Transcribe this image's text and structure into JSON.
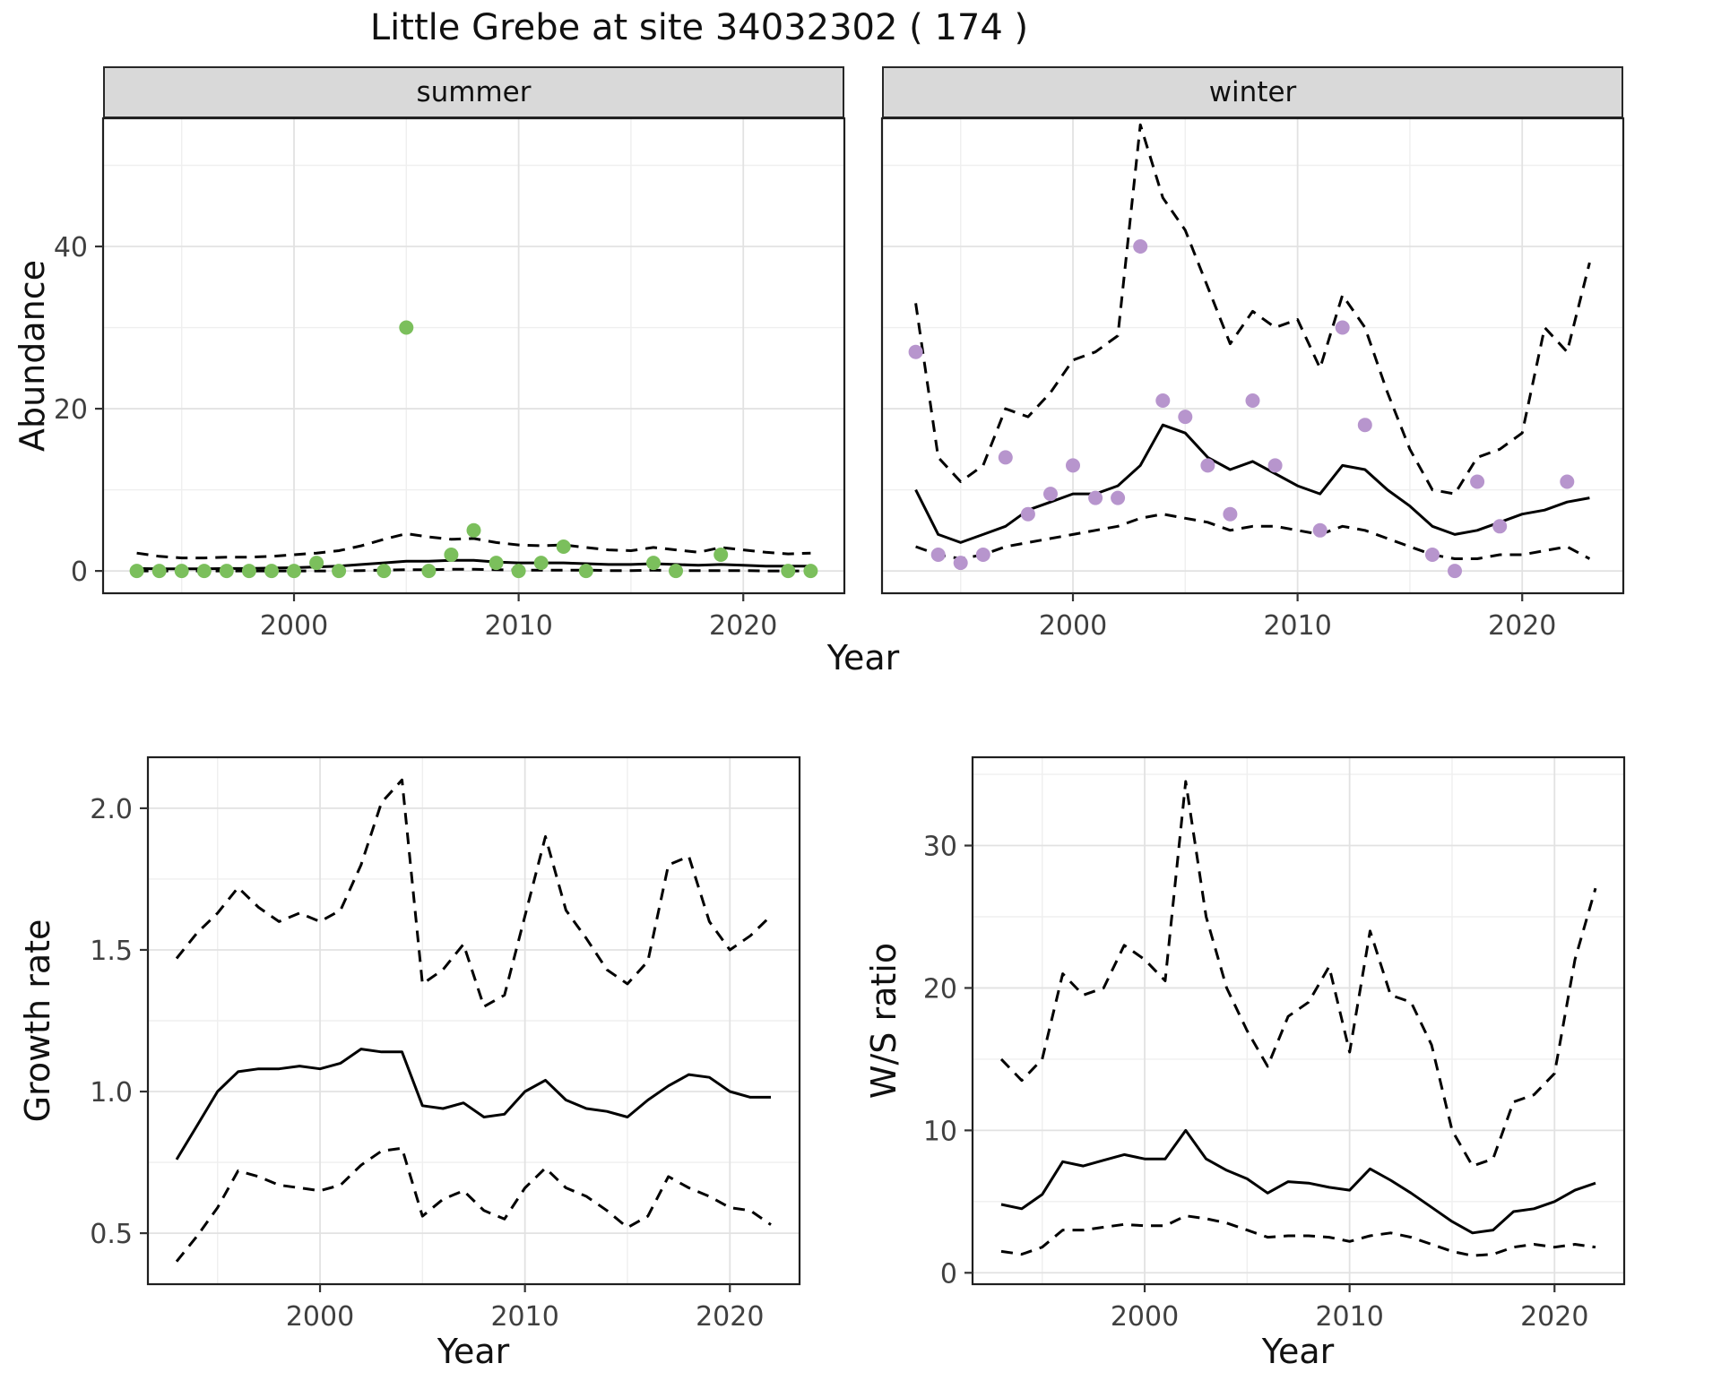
{
  "title": "Little Grebe at site 34032302 ( 174 )",
  "chart_data": [
    {
      "id": "abundance-summer",
      "type": "line",
      "facet_label": "summer",
      "xlabel": "Year",
      "ylabel": "Abundance",
      "xlim": [
        1991.5,
        2024.5
      ],
      "ylim": [
        -2.75,
        55.8
      ],
      "xticks": [
        2000,
        2010,
        2020
      ],
      "xtick_labels": [
        "2000",
        "2010",
        "2020"
      ],
      "xticks_minor": [
        1995,
        2005,
        2015
      ],
      "yticks": [
        0,
        20,
        40
      ],
      "ytick_labels": [
        "0",
        "20",
        "40"
      ],
      "yticks_minor": [
        10,
        30,
        50
      ],
      "grid": "on",
      "x": [
        1993,
        1994,
        1995,
        1996,
        1997,
        1998,
        1999,
        2000,
        2001,
        2002,
        2003,
        2004,
        2005,
        2006,
        2007,
        2008,
        2009,
        2010,
        2011,
        2012,
        2013,
        2014,
        2015,
        2016,
        2017,
        2018,
        2019,
        2020,
        2021,
        2022,
        2023
      ],
      "series": [
        {
          "name": "model-estimate",
          "style": "solid",
          "y": [
            0.3,
            0.25,
            0.25,
            0.25,
            0.3,
            0.3,
            0.35,
            0.4,
            0.5,
            0.6,
            0.8,
            1.0,
            1.2,
            1.2,
            1.3,
            1.3,
            1.1,
            1.0,
            1.0,
            1.0,
            0.9,
            0.8,
            0.8,
            0.9,
            0.8,
            0.7,
            0.8,
            0.7,
            0.6,
            0.6,
            0.6
          ]
        },
        {
          "name": "upper-confidence",
          "style": "dashed",
          "y": [
            2.2,
            1.8,
            1.6,
            1.6,
            1.7,
            1.7,
            1.8,
            2.0,
            2.2,
            2.5,
            3.1,
            3.9,
            4.6,
            4.2,
            3.9,
            4.0,
            3.5,
            3.2,
            3.1,
            3.2,
            2.9,
            2.6,
            2.5,
            2.9,
            2.6,
            2.3,
            2.9,
            2.6,
            2.3,
            2.1,
            2.2
          ]
        },
        {
          "name": "lower-confidence",
          "style": "dashed",
          "y": [
            0,
            0,
            0,
            0,
            0,
            0,
            0,
            0,
            0,
            0,
            0.05,
            0.1,
            0.15,
            0.15,
            0.2,
            0.2,
            0.15,
            0.1,
            0.1,
            0.1,
            0.1,
            0.05,
            0.05,
            0.1,
            0.05,
            0.05,
            0.05,
            0.05,
            0,
            0,
            0
          ]
        }
      ],
      "points": {
        "name": "observed-counts-summer",
        "color": "#7bbf5c",
        "x": [
          1993,
          1994,
          1995,
          1996,
          1997,
          1998,
          1999,
          2000,
          2001,
          2002,
          2004,
          2005,
          2006,
          2007,
          2008,
          2009,
          2010,
          2011,
          2012,
          2013,
          2016,
          2017,
          2019,
          2022,
          2023
        ],
        "y": [
          0,
          0,
          0,
          0,
          0,
          0,
          0,
          0,
          1,
          0,
          0,
          30,
          0,
          2,
          5,
          1,
          0,
          1,
          3,
          0,
          1,
          0,
          2,
          0,
          0
        ]
      }
    },
    {
      "id": "abundance-winter",
      "type": "line",
      "facet_label": "winter",
      "xlabel": "Year",
      "ylabel": "Abundance",
      "xlim": [
        1991.5,
        2024.5
      ],
      "ylim": [
        -2.75,
        55.8
      ],
      "xticks": [
        2000,
        2010,
        2020
      ],
      "xtick_labels": [
        "2000",
        "2010",
        "2020"
      ],
      "xticks_minor": [
        1995,
        2005,
        2015
      ],
      "yticks": [
        0,
        20,
        40
      ],
      "ytick_labels": [
        "0",
        "20",
        "40"
      ],
      "yticks_minor": [
        10,
        30,
        50
      ],
      "grid": "on",
      "x": [
        1993,
        1994,
        1995,
        1996,
        1997,
        1998,
        1999,
        2000,
        2001,
        2002,
        2003,
        2004,
        2005,
        2006,
        2007,
        2008,
        2009,
        2010,
        2011,
        2012,
        2013,
        2014,
        2015,
        2016,
        2017,
        2018,
        2019,
        2020,
        2021,
        2022,
        2023
      ],
      "series": [
        {
          "name": "model-estimate",
          "style": "solid",
          "y": [
            10,
            4.5,
            3.5,
            4.5,
            5.5,
            7.5,
            8.5,
            9.5,
            9.5,
            10.5,
            13,
            18,
            17,
            14,
            12.5,
            13.5,
            12,
            10.5,
            9.5,
            13,
            12.5,
            10,
            8,
            5.5,
            4.5,
            5,
            6,
            7,
            7.5,
            8.5,
            9
          ]
        },
        {
          "name": "upper-confidence",
          "style": "dashed",
          "y": [
            33,
            14,
            11,
            13,
            20,
            19,
            22,
            26,
            27,
            29,
            55,
            46,
            42,
            35,
            28,
            32,
            30,
            31,
            25,
            34,
            30,
            22,
            15,
            10,
            9.5,
            14,
            15,
            17,
            30,
            27,
            38
          ]
        },
        {
          "name": "lower-confidence",
          "style": "dashed",
          "y": [
            3,
            2,
            1.5,
            2,
            3,
            3.5,
            4,
            4.5,
            5,
            5.5,
            6.5,
            7,
            6.5,
            6,
            5,
            5.5,
            5.5,
            5,
            4.5,
            5.5,
            5,
            4,
            3,
            2,
            1.5,
            1.5,
            2,
            2,
            2.5,
            3,
            1.5
          ]
        }
      ],
      "points": {
        "name": "observed-counts-winter",
        "color": "#b795cd",
        "x": [
          1993,
          1994,
          1995,
          1996,
          1997,
          1998,
          1999,
          2000,
          2001,
          2002,
          2003,
          2004,
          2005,
          2006,
          2007,
          2008,
          2009,
          2011,
          2012,
          2013,
          2016,
          2017,
          2018,
          2019,
          2022
        ],
        "y": [
          27,
          2,
          1,
          2,
          14,
          7,
          9.5,
          13,
          9,
          9,
          40,
          21,
          19,
          13,
          7,
          21,
          13,
          5,
          30,
          18,
          2,
          0,
          11,
          5.5,
          11
        ]
      }
    },
    {
      "id": "growth-rate",
      "type": "line",
      "facet_label": "",
      "xlabel": "Year",
      "ylabel": "Growth rate",
      "xlim": [
        1991.6,
        2023.4
      ],
      "ylim": [
        0.32,
        2.18
      ],
      "xticks": [
        2000,
        2010,
        2020
      ],
      "xtick_labels": [
        "2000",
        "2010",
        "2020"
      ],
      "xticks_minor": [
        1995,
        2005,
        2015
      ],
      "yticks": [
        0.5,
        1.0,
        1.5,
        2.0
      ],
      "ytick_labels": [
        "0.5",
        "1.0",
        "1.5",
        "2.0"
      ],
      "yticks_minor": [
        0.75,
        1.25,
        1.75
      ],
      "grid": "on",
      "x": [
        1993,
        1994,
        1995,
        1996,
        1997,
        1998,
        1999,
        2000,
        2001,
        2002,
        2003,
        2004,
        2005,
        2006,
        2007,
        2008,
        2009,
        2010,
        2011,
        2012,
        2013,
        2014,
        2015,
        2016,
        2017,
        2018,
        2019,
        2020,
        2021,
        2022
      ],
      "series": [
        {
          "name": "model-estimate",
          "style": "solid",
          "y": [
            0.76,
            0.88,
            1.0,
            1.07,
            1.08,
            1.08,
            1.09,
            1.08,
            1.1,
            1.15,
            1.14,
            1.14,
            0.95,
            0.94,
            0.96,
            0.91,
            0.92,
            1.0,
            1.04,
            0.97,
            0.94,
            0.93,
            0.91,
            0.97,
            1.02,
            1.06,
            1.05,
            1.0,
            0.98,
            0.98
          ]
        },
        {
          "name": "upper-confidence",
          "style": "dashed",
          "y": [
            1.47,
            1.56,
            1.63,
            1.72,
            1.65,
            1.6,
            1.63,
            1.6,
            1.64,
            1.8,
            2.02,
            2.1,
            1.38,
            1.43,
            1.52,
            1.3,
            1.34,
            1.62,
            1.9,
            1.64,
            1.54,
            1.43,
            1.38,
            1.46,
            1.8,
            1.83,
            1.6,
            1.5,
            1.55,
            1.62
          ]
        },
        {
          "name": "lower-confidence",
          "style": "dashed",
          "y": [
            0.4,
            0.49,
            0.59,
            0.72,
            0.7,
            0.67,
            0.66,
            0.65,
            0.67,
            0.74,
            0.79,
            0.8,
            0.56,
            0.62,
            0.65,
            0.58,
            0.55,
            0.66,
            0.73,
            0.66,
            0.63,
            0.58,
            0.52,
            0.56,
            0.7,
            0.66,
            0.63,
            0.59,
            0.58,
            0.53
          ]
        }
      ]
    },
    {
      "id": "ws-ratio",
      "type": "line",
      "facet_label": "",
      "xlabel": "Year",
      "ylabel": "W/S ratio",
      "xlim": [
        1991.6,
        2023.4
      ],
      "ylim": [
        -0.8,
        36.2
      ],
      "xticks": [
        2000,
        2010,
        2020
      ],
      "xtick_labels": [
        "2000",
        "2010",
        "2020"
      ],
      "xticks_minor": [
        1995,
        2005,
        2015
      ],
      "yticks": [
        0,
        10,
        20,
        30
      ],
      "ytick_labels": [
        "0",
        "10",
        "20",
        "30"
      ],
      "yticks_minor": [
        5,
        15,
        25,
        35
      ],
      "grid": "on",
      "x": [
        1993,
        1994,
        1995,
        1996,
        1997,
        1998,
        1999,
        2000,
        2001,
        2002,
        2003,
        2004,
        2005,
        2006,
        2007,
        2008,
        2009,
        2010,
        2011,
        2012,
        2013,
        2014,
        2015,
        2016,
        2017,
        2018,
        2019,
        2020,
        2021,
        2022
      ],
      "series": [
        {
          "name": "model-estimate",
          "style": "solid",
          "y": [
            4.8,
            4.5,
            5.5,
            7.8,
            7.5,
            7.9,
            8.3,
            8.0,
            8.0,
            10.0,
            8.0,
            7.2,
            6.6,
            5.6,
            6.4,
            6.3,
            6.0,
            5.8,
            7.3,
            6.5,
            5.6,
            4.6,
            3.6,
            2.8,
            3.0,
            4.3,
            4.5,
            5.0,
            5.8,
            6.3
          ]
        },
        {
          "name": "upper-confidence",
          "style": "dashed",
          "y": [
            15,
            13.5,
            15,
            21,
            19.5,
            20,
            23,
            22,
            20.5,
            34.5,
            25,
            20,
            17,
            14.5,
            18,
            19,
            21.5,
            15.5,
            24,
            19.5,
            19,
            16,
            10,
            7.5,
            8,
            12,
            12.5,
            14,
            22,
            27
          ]
        },
        {
          "name": "lower-confidence",
          "style": "dashed",
          "y": [
            1.5,
            1.3,
            1.8,
            3.0,
            3.0,
            3.2,
            3.4,
            3.3,
            3.3,
            4.0,
            3.8,
            3.5,
            3.0,
            2.5,
            2.6,
            2.6,
            2.5,
            2.2,
            2.6,
            2.8,
            2.5,
            2.0,
            1.5,
            1.2,
            1.3,
            1.8,
            2.0,
            1.8,
            2.0,
            1.8
          ]
        }
      ]
    }
  ],
  "style": {
    "line_color": "#000000",
    "grid_major_color": "#e2e2e2",
    "grid_minor_color": "#efefef",
    "panel_border_color": "#1f1f1f",
    "strip_fill": "#d9d9d9",
    "tick_label_color": "#404040"
  }
}
